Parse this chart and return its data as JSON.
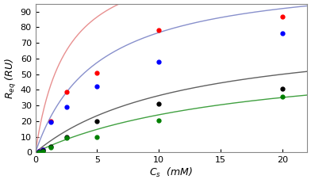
{
  "concentrations": [
    0.3,
    0.6,
    1.25,
    2.5,
    5.0,
    10.0,
    20.0
  ],
  "glucose_points": [
    0.5,
    1.5,
    20.0,
    38.5,
    51.0,
    78.0,
    87.0
  ],
  "fructose_points": [
    0.5,
    1.5,
    19.5,
    29.0,
    42.0,
    58.0,
    76.0
  ],
  "galactose_points": [
    0.2,
    1.0,
    4.0,
    10.0,
    20.0,
    31.0,
    40.5
  ],
  "mannose_points": [
    0.1,
    0.5,
    3.0,
    9.5,
    10.0,
    20.5,
    35.5
  ],
  "glucose_Rmax": 130.0,
  "glucose_Kd": 2.5,
  "fructose_Rmax": 115.0,
  "fructose_Kd": 5.0,
  "galactose_Rmax": 80.0,
  "galactose_Kd": 12.0,
  "mannose_Rmax": 65.0,
  "mannose_Kd": 17.0,
  "glucose_line_color": "#E89090",
  "fructose_line_color": "#8890CC",
  "galactose_line_color": "#606060",
  "mannose_line_color": "#40A040",
  "glucose_pt_color": "red",
  "fructose_pt_color": "blue",
  "galactose_pt_color": "black",
  "mannose_pt_color": "green",
  "xlim": [
    0,
    22
  ],
  "ylim": [
    0,
    95
  ],
  "xlabel": "$C_s$  (mM)",
  "ylabel": "$R_{eq}$ (RU)",
  "xticks": [
    0,
    5,
    10,
    15,
    20
  ],
  "yticks": [
    0,
    10,
    20,
    30,
    40,
    50,
    60,
    70,
    80,
    90
  ],
  "bg_color": "#FFFFFF",
  "spine_color": "#888888"
}
